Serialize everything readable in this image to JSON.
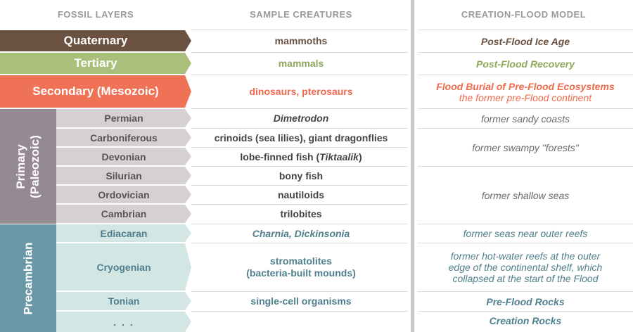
{
  "headers": {
    "fossil_layers": "FOSSIL LAYERS",
    "sample_creatures": "SAMPLE CREATURES",
    "creation_flood_model": "CREATION-FLOOD MODEL"
  },
  "major_bands": {
    "quaternary": "Quaternary",
    "tertiary": "Tertiary",
    "secondary": "Secondary (Mesozoic)",
    "primary_line1": "Primary",
    "primary_line2": "(Paleozoic)",
    "precambrian": "Precambrian"
  },
  "periods": {
    "permian": "Permian",
    "carboniferous": "Carboniferous",
    "devonian": "Devonian",
    "silurian": "Silurian",
    "ordovician": "Ordovician",
    "cambrian": "Cambrian",
    "ediacaran": "Ediacaran",
    "cryogenian": "Cryogenian",
    "tonian": "Tonian",
    "ellipsis": ". . ."
  },
  "creatures": {
    "quaternary": "mammoths",
    "tertiary": "mammals",
    "secondary": "dinosaurs, pterosaurs",
    "permian": "Dimetrodon",
    "carboniferous": "crinoids (sea lilies), giant dragonflies",
    "devonian_prefix": "lobe-finned fish (",
    "devonian_italic": "Tiktaalik",
    "devonian_suffix": ")",
    "silurian": "bony fish",
    "ordovician": "nautiloids",
    "cambrian": "trilobites",
    "ediacaran": "Charnia, Dickinsonia",
    "cryogenian_line1": "stromatolites",
    "cryogenian_line2": "(bacteria-built mounds)",
    "tonian": "single-cell organisms"
  },
  "model": {
    "post_flood_ice_age": "Post-Flood Ice Age",
    "post_flood_recovery": "Post-Flood Recovery",
    "flood_burial": "Flood Burial of Pre-Flood Ecosystems",
    "former_continent": "the former pre-Flood continent",
    "sandy_coasts": "former sandy coasts",
    "swampy_forests": "former swampy \"forests\"",
    "shallow_seas": "former shallow seas",
    "seas_near_reefs": "former seas near outer reefs",
    "hot_water_line1": "former hot-water reefs at the outer",
    "hot_water_line2": "edge of the continental shelf, which",
    "hot_water_line3": "collapsed at the start of the Flood",
    "pre_flood_rocks": "Pre-Flood Rocks",
    "creation_rocks": "Creation Rocks"
  },
  "colors": {
    "quaternary": "#6b5240",
    "tertiary": "#a9bf7a",
    "secondary": "#ef7256",
    "primary": "#958a91",
    "primary_sub": "#d6d0d4",
    "precambrian": "#6a97a6",
    "precambrian_sub": "#d2e6e4",
    "header_text": "#9a9a9a",
    "divider": "#c8c8c8"
  }
}
